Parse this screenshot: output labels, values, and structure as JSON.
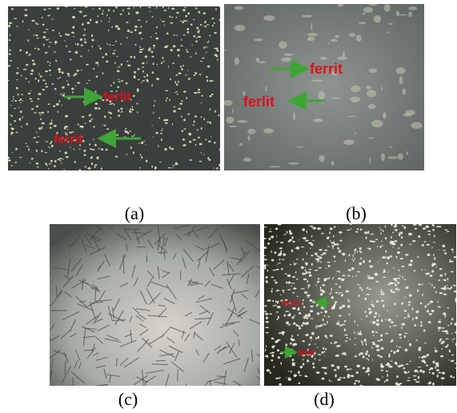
{
  "panels": [
    {
      "caption": "(a)",
      "annotations": [
        "ferlit",
        "ferrit"
      ]
    },
    {
      "caption": "(b)",
      "annotations": [
        "ferrit",
        "ferlit"
      ]
    },
    {
      "caption": "(c)",
      "annotations": []
    },
    {
      "caption": "(d)",
      "annotations": [
        "ferrit",
        "ferlit"
      ]
    }
  ]
}
